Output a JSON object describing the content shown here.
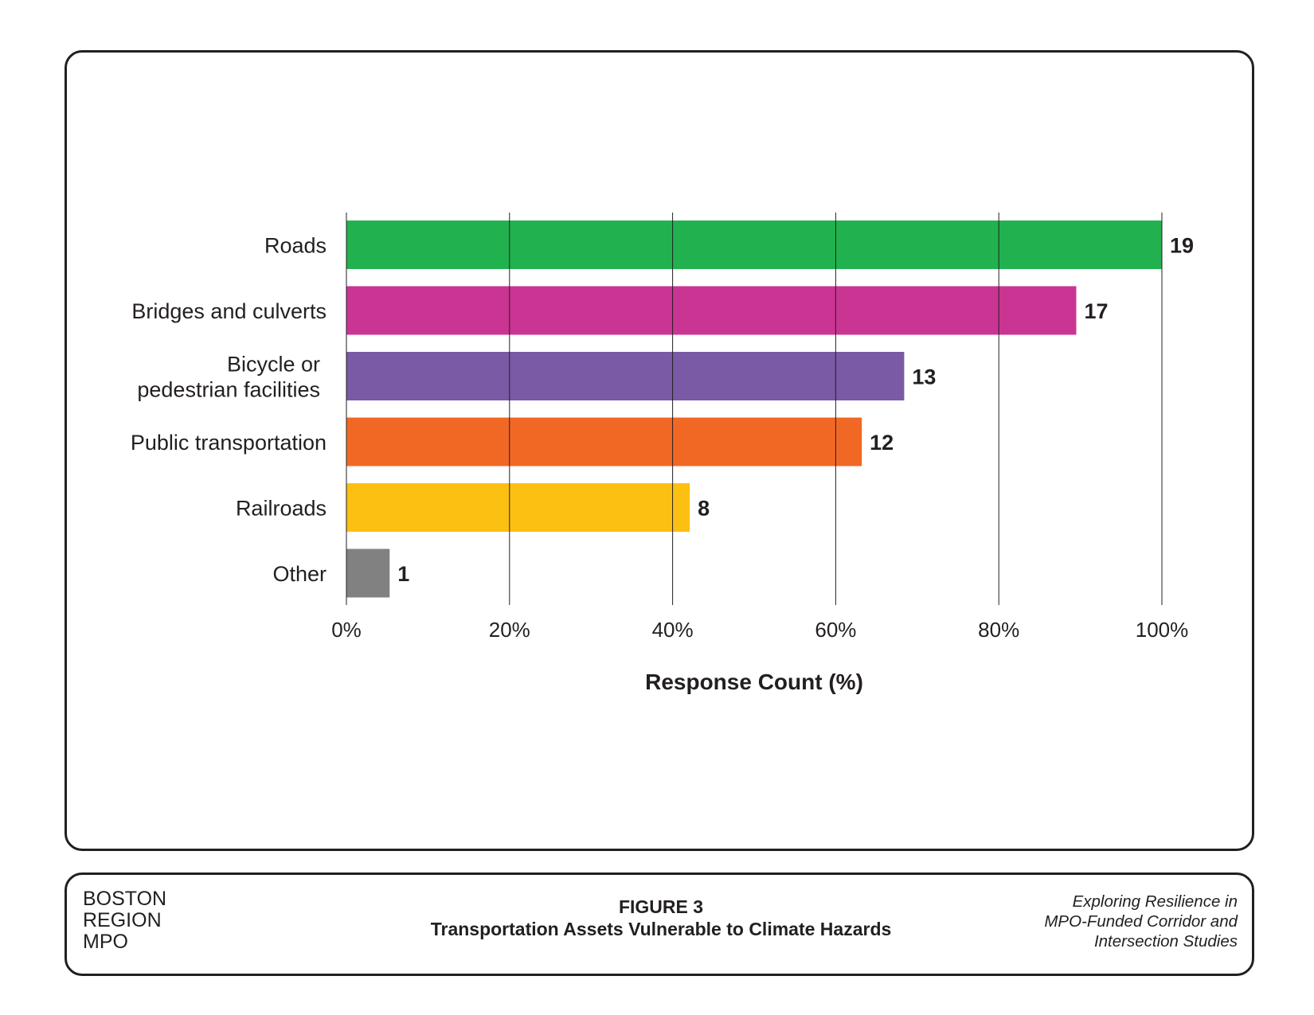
{
  "chart_data": {
    "type": "bar",
    "orientation": "horizontal",
    "categories": [
      "Roads",
      "Bridges and culverts",
      "Bicycle or\npedestrian facilities",
      "Public transportation",
      "Railroads",
      "Other"
    ],
    "values": [
      19,
      17,
      13,
      12,
      8,
      1
    ],
    "percent_values": [
      100,
      89.5,
      68.4,
      63.2,
      42.1,
      5.3
    ],
    "colors": [
      "#21b24f",
      "#ca3593",
      "#7a59a5",
      "#f16824",
      "#fcc012",
      "#818181"
    ],
    "xlabel": "Response Count (%)",
    "ylabel": "",
    "xlim": [
      0,
      100
    ],
    "xticks": [
      "0%",
      "20%",
      "40%",
      "60%",
      "80%",
      "100%"
    ],
    "grid": "vertical",
    "legend": "none"
  },
  "footer": {
    "org": [
      "BOSTON",
      "REGION",
      "MPO"
    ],
    "figure_number": "FIGURE 3",
    "figure_title": "Transportation Assets Vulnerable to Climate Hazards",
    "publication": [
      "Exploring Resilience in",
      "MPO-Funded Corridor and",
      "Intersection Studies"
    ]
  }
}
